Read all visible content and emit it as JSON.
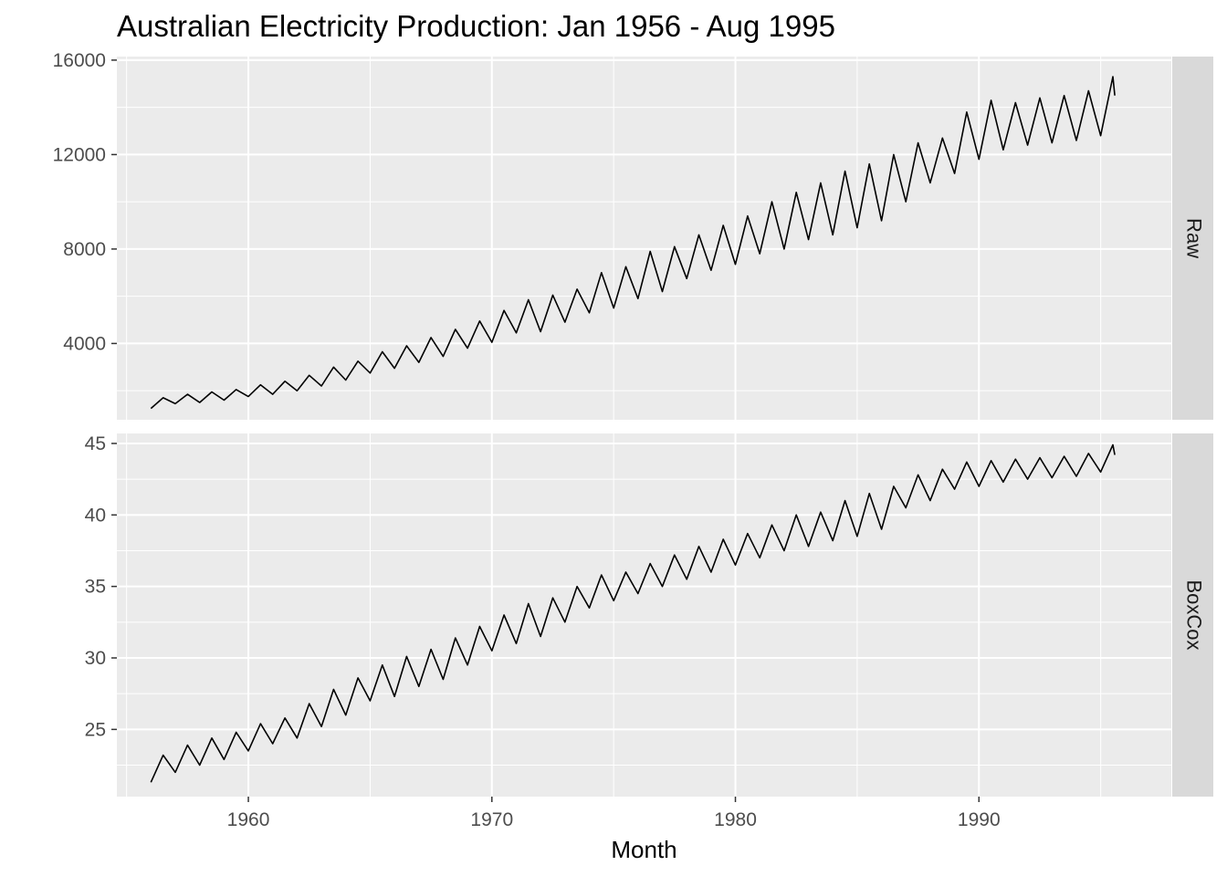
{
  "chart_data": {
    "type": "line",
    "title": "Australian Electricity Production: Jan 1956 - Aug 1995",
    "xlabel": "Month",
    "x_range": [
      "1956-01",
      "1995-08"
    ],
    "x_ticks": [
      "1960",
      "1970",
      "1980",
      "1990"
    ],
    "x_lim": [
      1954.6,
      1997.9
    ],
    "grid": true,
    "panels": [
      {
        "name": "Raw",
        "y_ticks": [
          "4000",
          "8000",
          "12000",
          "16000"
        ],
        "y_lim": [
          770,
          16150
        ],
        "x": [
          1956.0,
          1956.5,
          1957.0,
          1957.5,
          1958.0,
          1958.5,
          1959.0,
          1959.5,
          1960.0,
          1960.5,
          1961.0,
          1961.5,
          1962.0,
          1962.5,
          1963.0,
          1963.5,
          1964.0,
          1964.5,
          1965.0,
          1965.5,
          1966.0,
          1966.5,
          1967.0,
          1967.5,
          1968.0,
          1968.5,
          1969.0,
          1969.5,
          1970.0,
          1970.5,
          1971.0,
          1971.5,
          1972.0,
          1972.5,
          1973.0,
          1973.5,
          1974.0,
          1974.5,
          1975.0,
          1975.5,
          1976.0,
          1976.5,
          1977.0,
          1977.5,
          1978.0,
          1978.5,
          1979.0,
          1979.5,
          1980.0,
          1980.5,
          1981.0,
          1981.5,
          1982.0,
          1982.5,
          1983.0,
          1983.5,
          1984.0,
          1984.5,
          1985.0,
          1985.5,
          1986.0,
          1986.5,
          1987.0,
          1987.5,
          1988.0,
          1988.5,
          1989.0,
          1989.5,
          1990.0,
          1990.5,
          1991.0,
          1991.5,
          1992.0,
          1992.5,
          1993.0,
          1993.5,
          1994.0,
          1994.5,
          1995.0,
          1995.5,
          1995.58
        ],
        "y": [
          1250,
          1700,
          1450,
          1850,
          1500,
          1950,
          1600,
          2050,
          1750,
          2250,
          1850,
          2400,
          2000,
          2650,
          2200,
          3000,
          2450,
          3250,
          2750,
          3650,
          2950,
          3900,
          3200,
          4250,
          3450,
          4600,
          3800,
          4950,
          4050,
          5400,
          4450,
          5850,
          4500,
          6050,
          4900,
          6300,
          5300,
          7000,
          5500,
          7250,
          5900,
          7900,
          6200,
          8100,
          6750,
          8600,
          7100,
          9000,
          7350,
          9400,
          7800,
          10000,
          8000,
          10400,
          8400,
          10800,
          8600,
          11300,
          8900,
          11600,
          9200,
          12000,
          10000,
          12500,
          10800,
          12700,
          11200,
          13800,
          11800,
          14300,
          12200,
          14200,
          12400,
          14400,
          12500,
          14500,
          12600,
          14700,
          12800,
          15300,
          14500
        ]
      },
      {
        "name": "BoxCox",
        "y_ticks": [
          "25",
          "30",
          "35",
          "40",
          "45"
        ],
        "y_lim": [
          20.3,
          45.7
        ],
        "x": [
          1956.0,
          1956.5,
          1957.0,
          1957.5,
          1958.0,
          1958.5,
          1959.0,
          1959.5,
          1960.0,
          1960.5,
          1961.0,
          1961.5,
          1962.0,
          1962.5,
          1963.0,
          1963.5,
          1964.0,
          1964.5,
          1965.0,
          1965.5,
          1966.0,
          1966.5,
          1967.0,
          1967.5,
          1968.0,
          1968.5,
          1969.0,
          1969.5,
          1970.0,
          1970.5,
          1971.0,
          1971.5,
          1972.0,
          1972.5,
          1973.0,
          1973.5,
          1974.0,
          1974.5,
          1975.0,
          1975.5,
          1976.0,
          1976.5,
          1977.0,
          1977.5,
          1978.0,
          1978.5,
          1979.0,
          1979.5,
          1980.0,
          1980.5,
          1981.0,
          1981.5,
          1982.0,
          1982.5,
          1983.0,
          1983.5,
          1984.0,
          1984.5,
          1985.0,
          1985.5,
          1986.0,
          1986.5,
          1987.0,
          1987.5,
          1988.0,
          1988.5,
          1989.0,
          1989.5,
          1990.0,
          1990.5,
          1991.0,
          1991.5,
          1992.0,
          1992.5,
          1993.0,
          1993.5,
          1994.0,
          1994.5,
          1995.0,
          1995.5,
          1995.58
        ],
        "y": [
          21.3,
          23.2,
          22.0,
          23.9,
          22.5,
          24.4,
          22.9,
          24.8,
          23.5,
          25.4,
          24.0,
          25.8,
          24.4,
          26.8,
          25.2,
          27.8,
          26.0,
          28.6,
          27.0,
          29.5,
          27.3,
          30.1,
          28.0,
          30.6,
          28.5,
          31.4,
          29.5,
          32.2,
          30.5,
          33.0,
          31.0,
          33.8,
          31.5,
          34.2,
          32.5,
          35.0,
          33.5,
          35.8,
          34.0,
          36.0,
          34.5,
          36.6,
          35.0,
          37.2,
          35.5,
          37.8,
          36.0,
          38.3,
          36.5,
          38.7,
          37.0,
          39.3,
          37.5,
          40.0,
          37.8,
          40.2,
          38.2,
          41.0,
          38.5,
          41.5,
          39.0,
          42.0,
          40.5,
          42.8,
          41.0,
          43.2,
          41.8,
          43.7,
          42.0,
          43.8,
          42.3,
          43.9,
          42.5,
          44.0,
          42.6,
          44.1,
          42.7,
          44.3,
          43.0,
          44.9,
          44.2
        ]
      }
    ]
  }
}
